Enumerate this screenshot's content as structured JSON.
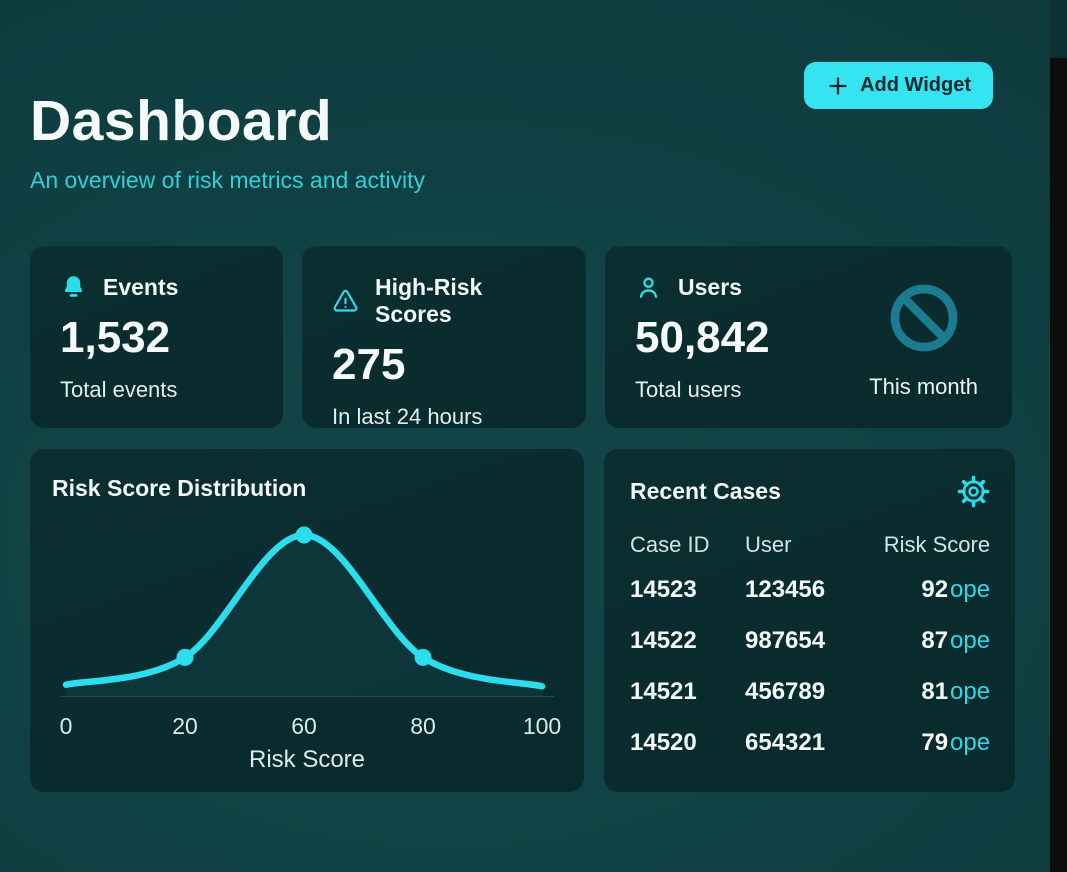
{
  "page": {
    "title": "Dashboard",
    "subtitle": "An overview of risk metrics and activity"
  },
  "toolbar": {
    "add_widget_label": "Add Widget"
  },
  "stats": [
    {
      "icon": "bell",
      "label": "Events",
      "value": "1,532",
      "sub": "Total events"
    },
    {
      "icon": "alert-triangle",
      "label": "High-Risk Scores",
      "value": "275",
      "sub": "In last 24 hours"
    },
    {
      "icon": "user",
      "label": "Users",
      "value": "50,842",
      "sub": "Total users",
      "aside_icon": "ban",
      "aside_label": "This month"
    }
  ],
  "chart_card": {
    "title": "Risk Score Distribution"
  },
  "chart_data": {
    "type": "line",
    "title": "Risk Score Distribution",
    "x_tick_labels": [
      "0",
      "20",
      "60",
      "80",
      "100"
    ],
    "x": [
      0,
      20,
      60,
      80,
      100
    ],
    "values": [
      7,
      24,
      100,
      24,
      6
    ],
    "marker_indices": [
      1,
      2,
      3
    ],
    "xlabel": "Risk Score",
    "ylabel": "",
    "ylim": [
      0,
      100
    ],
    "grid": false,
    "legend": "none",
    "line_color": "#2bdeee"
  },
  "recent_cases": {
    "title": "Recent Cases",
    "columns": [
      "Case ID",
      "User",
      "Risk Score"
    ],
    "rows": [
      {
        "case_id": "14523",
        "user": "123456",
        "score": "92",
        "status": "ope"
      },
      {
        "case_id": "14522",
        "user": "987654",
        "score": "87",
        "status": "ope"
      },
      {
        "case_id": "14521",
        "user": "456789",
        "score": "81",
        "status": "ope"
      },
      {
        "case_id": "14520",
        "user": "654321",
        "score": "79",
        "status": "ope"
      }
    ]
  },
  "colors": {
    "background": "#0f3e41",
    "card_background": "#0a2c2f",
    "accent_cyan": "#35e3f1",
    "subtitle_cyan": "#2fd0da",
    "ban_icon_teal": "#1b7b90",
    "text_white": "#f4f9f9",
    "edge_strip_black": "#0d0d0d"
  }
}
